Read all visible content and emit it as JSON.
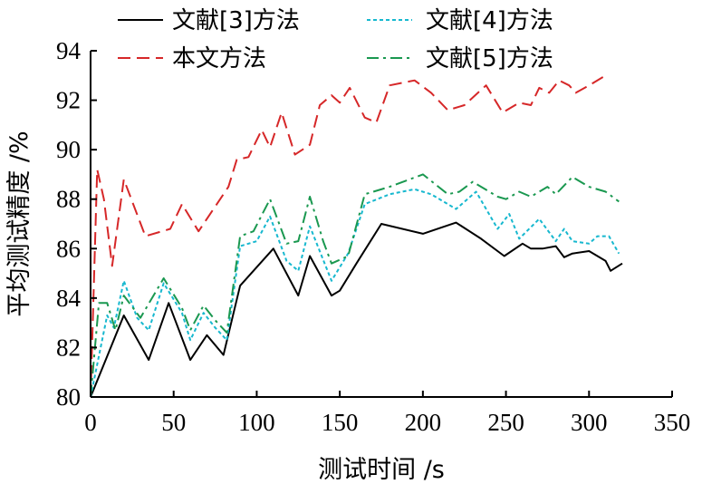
{
  "chart_data": {
    "type": "line",
    "xlabel": "测试时间 /s",
    "ylabel": "平均测试精度 /%",
    "xlim": [
      0,
      350
    ],
    "ylim": [
      80,
      94
    ],
    "x_ticks": [
      0,
      50,
      100,
      150,
      200,
      250,
      300,
      350
    ],
    "y_ticks": [
      80,
      82,
      84,
      86,
      88,
      90,
      92,
      94
    ],
    "grid": false,
    "legend_position": "top",
    "series": [
      {
        "name": "文献[3]方法",
        "color": "#000000",
        "dash": "solid",
        "points": [
          [
            0,
            80
          ],
          [
            20,
            83.3
          ],
          [
            35,
            81.5
          ],
          [
            47,
            83.8
          ],
          [
            60,
            81.5
          ],
          [
            70,
            82.5
          ],
          [
            80,
            81.7
          ],
          [
            90,
            84.5
          ],
          [
            110,
            86
          ],
          [
            125,
            84.1
          ],
          [
            132,
            85.7
          ],
          [
            145,
            84.1
          ],
          [
            150,
            84.3
          ],
          [
            160,
            85.4
          ],
          [
            175,
            87
          ],
          [
            200,
            86.6
          ],
          [
            220,
            87.05
          ],
          [
            235,
            86.4
          ],
          [
            249,
            85.7
          ],
          [
            260,
            86.2
          ],
          [
            265,
            86
          ],
          [
            272,
            86
          ],
          [
            280,
            86.1
          ],
          [
            285,
            85.65
          ],
          [
            290,
            85.8
          ],
          [
            300,
            85.9
          ],
          [
            310,
            85.5
          ],
          [
            313,
            85.1
          ],
          [
            320,
            85.4
          ]
        ]
      },
      {
        "name": "文献[4]方法",
        "color": "#17b8cf",
        "dash": "dotted",
        "points": [
          [
            0,
            80
          ],
          [
            10,
            83.3
          ],
          [
            14,
            82.8
          ],
          [
            20,
            84.7
          ],
          [
            28,
            83.2
          ],
          [
            35,
            82.7
          ],
          [
            44,
            84.6
          ],
          [
            55,
            83.4
          ],
          [
            60,
            82.3
          ],
          [
            68,
            83.4
          ],
          [
            75,
            82.8
          ],
          [
            82,
            82.3
          ],
          [
            90,
            86.1
          ],
          [
            100,
            86.3
          ],
          [
            108,
            87.3
          ],
          [
            118,
            85.5
          ],
          [
            125,
            85.1
          ],
          [
            132,
            86.9
          ],
          [
            145,
            84.7
          ],
          [
            155,
            85.8
          ],
          [
            165,
            87.8
          ],
          [
            180,
            88.2
          ],
          [
            195,
            88.4
          ],
          [
            205,
            88.2
          ],
          [
            220,
            87.6
          ],
          [
            232,
            88.3
          ],
          [
            245,
            86.8
          ],
          [
            252,
            87.4
          ],
          [
            258,
            86.4
          ],
          [
            270,
            87.2
          ],
          [
            280,
            86.3
          ],
          [
            285,
            86.8
          ],
          [
            290,
            86.3
          ],
          [
            300,
            86.2
          ],
          [
            305,
            86.5
          ],
          [
            312,
            86.5
          ],
          [
            318,
            85.8
          ]
        ]
      },
      {
        "name": "本文方法",
        "color": "#d62728",
        "dash": "dashed",
        "points": [
          [
            0,
            80
          ],
          [
            4,
            89.2
          ],
          [
            8,
            88
          ],
          [
            13,
            85.3
          ],
          [
            20,
            88.8
          ],
          [
            33,
            86.5
          ],
          [
            48,
            86.8
          ],
          [
            55,
            87.8
          ],
          [
            65,
            86.7
          ],
          [
            83,
            88.5
          ],
          [
            88,
            89.6
          ],
          [
            95,
            89.7
          ],
          [
            103,
            90.8
          ],
          [
            108,
            90.1
          ],
          [
            115,
            91.5
          ],
          [
            123,
            89.8
          ],
          [
            132,
            90.2
          ],
          [
            138,
            91.8
          ],
          [
            145,
            92.2
          ],
          [
            150,
            91.9
          ],
          [
            156,
            92.5
          ],
          [
            165,
            91.3
          ],
          [
            172,
            91.1
          ],
          [
            180,
            92.6
          ],
          [
            195,
            92.8
          ],
          [
            205,
            92.3
          ],
          [
            215,
            91.6
          ],
          [
            225,
            91.8
          ],
          [
            238,
            92.6
          ],
          [
            248,
            91.5
          ],
          [
            258,
            91.9
          ],
          [
            265,
            91.8
          ],
          [
            270,
            92.5
          ],
          [
            276,
            92.3
          ],
          [
            282,
            92.8
          ],
          [
            288,
            92.6
          ],
          [
            292,
            92.3
          ],
          [
            300,
            92.6
          ],
          [
            310,
            93
          ]
        ]
      },
      {
        "name": "文献[5]方法",
        "color": "#1a9850",
        "dash": "dashdot",
        "points": [
          [
            0,
            80
          ],
          [
            5,
            83.8
          ],
          [
            10,
            83.8
          ],
          [
            15,
            82.7
          ],
          [
            20,
            84.1
          ],
          [
            30,
            83.2
          ],
          [
            44,
            84.8
          ],
          [
            55,
            83.6
          ],
          [
            60,
            82.7
          ],
          [
            68,
            83.7
          ],
          [
            75,
            83.1
          ],
          [
            82,
            82.6
          ],
          [
            90,
            86.5
          ],
          [
            98,
            86.7
          ],
          [
            108,
            88
          ],
          [
            118,
            86.2
          ],
          [
            125,
            86.3
          ],
          [
            132,
            88.1
          ],
          [
            140,
            86.3
          ],
          [
            145,
            85.4
          ],
          [
            155,
            85.7
          ],
          [
            165,
            88.2
          ],
          [
            180,
            88.5
          ],
          [
            200,
            89
          ],
          [
            215,
            88.2
          ],
          [
            222,
            88.3
          ],
          [
            230,
            88.7
          ],
          [
            245,
            88.1
          ],
          [
            250,
            88
          ],
          [
            258,
            88.3
          ],
          [
            265,
            88.1
          ],
          [
            275,
            88.5
          ],
          [
            280,
            88.2
          ],
          [
            290,
            88.9
          ],
          [
            300,
            88.5
          ],
          [
            310,
            88.3
          ],
          [
            318,
            87.9
          ]
        ]
      }
    ]
  }
}
